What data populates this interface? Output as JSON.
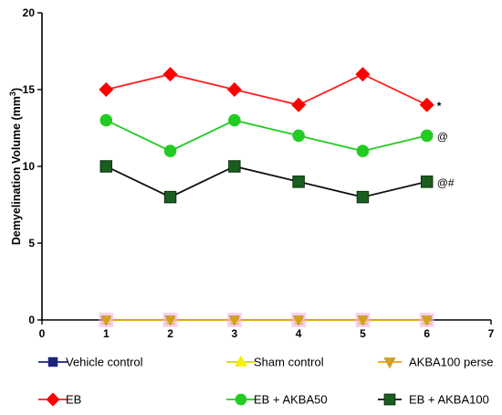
{
  "chart_data": {
    "type": "line",
    "title": "",
    "xlabel": "",
    "ylabel": "Demyelination Volume (mm",
    "ylabel_sup": "3",
    "ylabel_close": ")",
    "xlim": [
      0,
      7
    ],
    "ylim": [
      0,
      20
    ],
    "xticks": [
      0,
      1,
      2,
      3,
      4,
      5,
      6,
      7
    ],
    "yticks": [
      0,
      5,
      10,
      15,
      20
    ],
    "grid": false,
    "legend_position": "bottom",
    "x": [
      1,
      2,
      3,
      4,
      5,
      6
    ],
    "series": [
      {
        "name": "Vehicle control",
        "values": [
          0,
          0,
          0,
          0,
          0,
          0
        ],
        "color": "#1a237e",
        "marker": "square-dark",
        "line": "#1a237e"
      },
      {
        "name": "Sham control",
        "values": [
          0,
          0,
          0,
          0,
          0,
          0
        ],
        "color": "#f2f200",
        "marker": "triangle-up",
        "line": "#d8d800"
      },
      {
        "name": "AKBA100 perse",
        "values": [
          0,
          0,
          0,
          0,
          0,
          0
        ],
        "color": "#d4a020",
        "marker": "triangle-down",
        "line": "#f39c12"
      },
      {
        "name": "EB",
        "values": [
          15,
          16,
          15,
          14,
          16,
          14
        ],
        "color": "#ff0000",
        "marker": "diamond",
        "line": "#ff2020"
      },
      {
        "name": "EB +  AKBA50",
        "values": [
          13,
          11,
          13,
          12,
          11,
          12
        ],
        "color": "#22cc22",
        "marker": "circle",
        "line": "#22cc22"
      },
      {
        "name": "EB + AKBA100",
        "values": [
          10,
          8,
          10,
          9,
          8,
          9
        ],
        "color": "#1b5e20",
        "marker": "square",
        "line": "#111111"
      }
    ],
    "annotations": [
      {
        "series": "EB",
        "x": 6,
        "text": "*"
      },
      {
        "series": "EB +  AKBA50",
        "x": 6,
        "text": "@"
      },
      {
        "series": "EB + AKBA100",
        "x": 6,
        "text": "@#"
      }
    ]
  }
}
